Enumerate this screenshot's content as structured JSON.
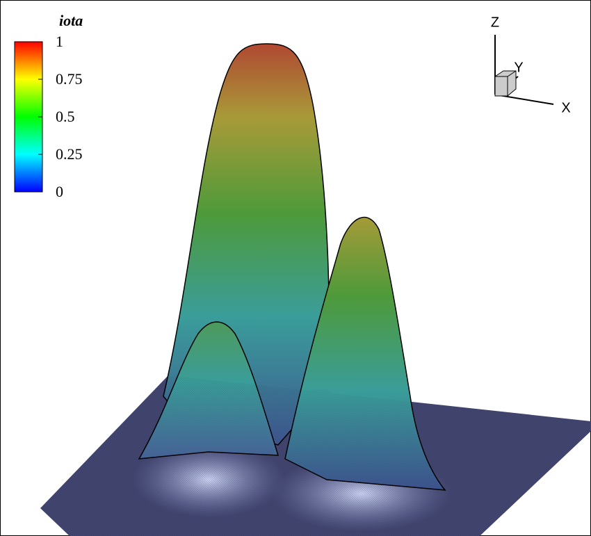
{
  "chart_data": {
    "type": "surface",
    "colorbar_title": "iota",
    "clim": [
      0,
      1
    ],
    "cticks": [
      0,
      0.25,
      0.5,
      0.75,
      1
    ],
    "colormap": [
      "#0000ff",
      "#00ffff",
      "#00ff00",
      "#ffff00",
      "#ff0000"
    ],
    "xlabel": "X",
    "ylabel": "Y",
    "zlabel": "Z"
  }
}
